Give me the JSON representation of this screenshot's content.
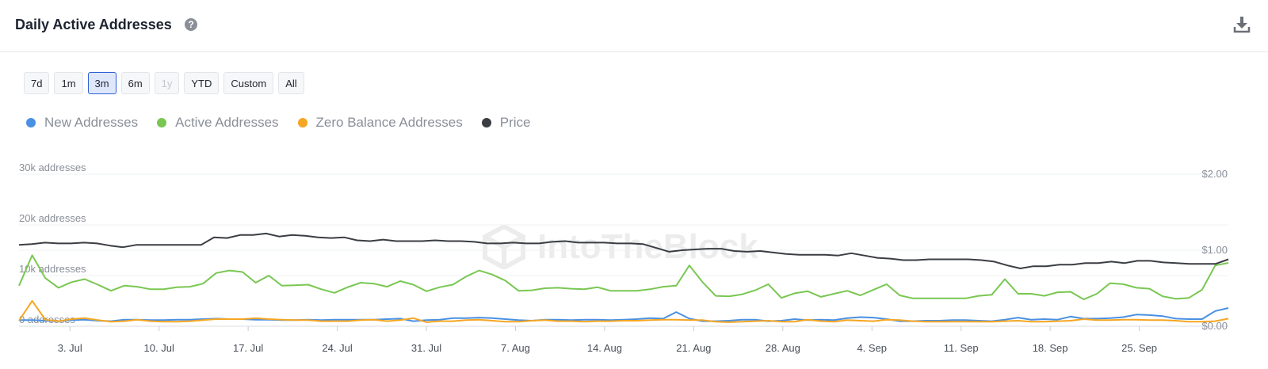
{
  "header": {
    "title": "Daily Active Addresses",
    "help_icon": "question-circle-icon",
    "download_icon": "download-icon"
  },
  "ranges": [
    {
      "label": "7d",
      "state": "normal"
    },
    {
      "label": "1m",
      "state": "normal"
    },
    {
      "label": "3m",
      "state": "active"
    },
    {
      "label": "6m",
      "state": "normal"
    },
    {
      "label": "1y",
      "state": "disabled"
    },
    {
      "label": "YTD",
      "state": "normal"
    },
    {
      "label": "Custom",
      "state": "normal"
    },
    {
      "label": "All",
      "state": "normal"
    }
  ],
  "watermark": "IntoTheBlock",
  "chart_data": {
    "type": "line",
    "x_ticks": [
      "3. Jul",
      "10. Jul",
      "17. Jul",
      "24. Jul",
      "31. Jul",
      "7. Aug",
      "14. Aug",
      "21. Aug",
      "28. Aug",
      "4. Sep",
      "11. Sep",
      "18. Sep",
      "25. Sep"
    ],
    "x_range_days": [
      -4,
      91
    ],
    "y_left": {
      "ticks": [
        "0 addresses",
        "10k addresses",
        "20k addresses",
        "30k addresses"
      ],
      "values": [
        0,
        10000,
        20000,
        30000
      ],
      "range": [
        0,
        30000
      ]
    },
    "y_right": {
      "ticks": [
        "$0.00",
        "$1.00",
        "$2.00"
      ],
      "values": [
        0,
        1,
        2
      ],
      "range": [
        0,
        2
      ]
    },
    "grid": true,
    "legend_position": "top-left",
    "series": [
      {
        "name": "New Addresses",
        "axis": "left",
        "color": "#4a90e2",
        "values": [
          1200,
          1200,
          1100,
          1000,
          1200,
          1300,
          1100,
          1000,
          1300,
          1300,
          1200,
          1200,
          1300,
          1300,
          1400,
          1500,
          1400,
          1400,
          1300,
          1300,
          1200,
          1200,
          1300,
          1200,
          1300,
          1300,
          1300,
          1300,
          1400,
          1500,
          1000,
          1200,
          1300,
          1600,
          1600,
          1700,
          1600,
          1400,
          1200,
          1100,
          1300,
          1300,
          1200,
          1300,
          1300,
          1200,
          1300,
          1400,
          1600,
          1500,
          2800,
          1500,
          1000,
          1000,
          1100,
          1300,
          1300,
          1000,
          1100,
          1400,
          1200,
          1300,
          1200,
          1600,
          1800,
          1700,
          1400,
          1000,
          1000,
          1100,
          1100,
          1200,
          1200,
          1100,
          1000,
          1300,
          1700,
          1300,
          1400,
          1300,
          1900,
          1500,
          1500,
          1600,
          1800,
          2300,
          2200,
          2000,
          1500,
          1400,
          1400,
          3000,
          3600
        ]
      },
      {
        "name": "Active Addresses",
        "axis": "left",
        "color": "#79c752",
        "values": [
          8000,
          14000,
          9500,
          7600,
          8700,
          9300,
          8200,
          7000,
          8000,
          7800,
          7300,
          7300,
          7700,
          7800,
          8400,
          10500,
          11000,
          10700,
          8600,
          10000,
          8000,
          8100,
          8200,
          7300,
          6600,
          7700,
          8600,
          8400,
          7800,
          8900,
          8200,
          6900,
          7700,
          8200,
          9800,
          11000,
          10200,
          9000,
          7000,
          7100,
          7500,
          7600,
          7400,
          7300,
          7700,
          7000,
          7000,
          7000,
          7300,
          7800,
          8000,
          12000,
          8700,
          6000,
          5900,
          6300,
          7100,
          8300,
          5600,
          6500,
          6900,
          5800,
          6400,
          7000,
          6100,
          7200,
          8300,
          6100,
          5500,
          5500,
          5500,
          5500,
          5500,
          6000,
          6200,
          9300,
          6400,
          6400,
          6000,
          6700,
          6800,
          5300,
          6400,
          8500,
          8300,
          7600,
          7400,
          5900,
          5400,
          5600,
          7200,
          12000,
          12500
        ]
      },
      {
        "name": "Zero Balance Addresses",
        "axis": "left",
        "color": "#f5a623",
        "values": [
          1100,
          5000,
          1300,
          1000,
          1400,
          1600,
          1200,
          900,
          1000,
          1300,
          1000,
          900,
          900,
          1000,
          1200,
          1400,
          1400,
          1400,
          1600,
          1400,
          1300,
          1200,
          1200,
          1000,
          1000,
          1000,
          1200,
          1300,
          1000,
          1200,
          1600,
          800,
          1000,
          1000,
          1200,
          1300,
          1100,
          900,
          900,
          1100,
          1200,
          1000,
          1000,
          900,
          1000,
          1000,
          1100,
          1100,
          1200,
          1300,
          1300,
          1200,
          1200,
          900,
          800,
          900,
          1000,
          1100,
          900,
          900,
          1300,
          1000,
          900,
          1200,
          1100,
          1000,
          1300,
          1200,
          1000,
          900,
          900,
          900,
          900,
          900,
          900,
          1000,
          1100,
          900,
          900,
          1000,
          1100,
          1400,
          1200,
          1200,
          1300,
          1300,
          1200,
          1200,
          1100,
          900,
          900,
          1000,
          1500
        ]
      },
      {
        "name": "Price",
        "axis": "right",
        "color": "#3a3d42",
        "values": [
          1.07,
          1.08,
          1.1,
          1.09,
          1.09,
          1.1,
          1.09,
          1.06,
          1.04,
          1.07,
          1.07,
          1.07,
          1.07,
          1.07,
          1.07,
          1.17,
          1.16,
          1.2,
          1.2,
          1.22,
          1.18,
          1.2,
          1.19,
          1.17,
          1.16,
          1.17,
          1.13,
          1.12,
          1.14,
          1.12,
          1.12,
          1.12,
          1.13,
          1.12,
          1.12,
          1.11,
          1.09,
          1.09,
          1.1,
          1.09,
          1.09,
          1.11,
          1.12,
          1.1,
          1.1,
          1.1,
          1.09,
          1.09,
          1.08,
          1.03,
          0.98,
          1.0,
          1.01,
          1.02,
          1.02,
          0.99,
          0.98,
          0.99,
          0.97,
          0.95,
          0.94,
          0.94,
          0.94,
          0.93,
          0.96,
          0.93,
          0.9,
          0.89,
          0.87,
          0.87,
          0.88,
          0.88,
          0.88,
          0.88,
          0.87,
          0.85,
          0.8,
          0.76,
          0.79,
          0.79,
          0.81,
          0.81,
          0.83,
          0.83,
          0.85,
          0.83,
          0.86,
          0.86,
          0.84,
          0.83,
          0.82,
          0.82,
          0.82,
          0.88
        ]
      }
    ]
  }
}
